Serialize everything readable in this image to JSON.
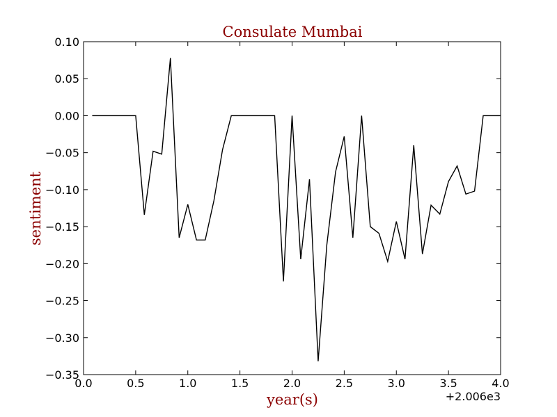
{
  "colors": {
    "accent": "#8b0000",
    "line": "#000000",
    "axes": "#000000",
    "background": "#ffffff"
  },
  "chart_data": {
    "type": "line",
    "title": "Consulate Mumbai",
    "xlabel": "year(s)",
    "ylabel": "sentiment",
    "x_offset_label": "+2.006e3",
    "xlim": [
      0.0,
      4.0
    ],
    "ylim": [
      -0.35,
      0.1
    ],
    "xticks": [
      "0.0",
      "0.5",
      "1.0",
      "1.5",
      "2.0",
      "2.5",
      "3.0",
      "3.5",
      "4.0"
    ],
    "yticks": [
      "0.10",
      "0.05",
      "0.00",
      "−0.05",
      "−0.10",
      "−0.15",
      "−0.20",
      "−0.25",
      "−0.30",
      "−0.35"
    ],
    "grid": false,
    "series": [
      {
        "x": [
          0.083,
          0.167,
          0.25,
          0.333,
          0.417,
          0.5,
          0.583,
          0.667,
          0.75,
          0.833,
          0.917,
          1.0,
          1.083,
          1.167,
          1.25,
          1.333,
          1.417,
          1.5,
          1.583,
          1.667,
          1.75,
          1.833,
          1.917,
          2.0,
          2.083,
          2.167,
          2.25,
          2.333,
          2.417,
          2.5,
          2.583,
          2.667,
          2.75,
          2.833,
          2.917,
          3.0,
          3.083,
          3.167,
          3.25,
          3.333,
          3.417,
          3.5,
          3.583,
          3.667,
          3.75,
          3.833,
          3.917,
          4.0
        ],
        "y": [
          0.0,
          0.0,
          0.0,
          0.0,
          0.0,
          0.0,
          -0.134,
          -0.048,
          -0.052,
          0.078,
          -0.165,
          -0.12,
          -0.168,
          -0.168,
          -0.115,
          -0.046,
          0.0,
          0.0,
          0.0,
          0.0,
          0.0,
          0.0,
          -0.224,
          0.0,
          -0.194,
          -0.086,
          -0.332,
          -0.175,
          -0.076,
          -0.028,
          -0.165,
          0.0,
          -0.15,
          -0.159,
          -0.197,
          -0.143,
          -0.194,
          -0.04,
          -0.187,
          -0.121,
          -0.133,
          -0.089,
          -0.068,
          -0.106,
          -0.102,
          0.0,
          0.0,
          0.0
        ]
      }
    ]
  }
}
